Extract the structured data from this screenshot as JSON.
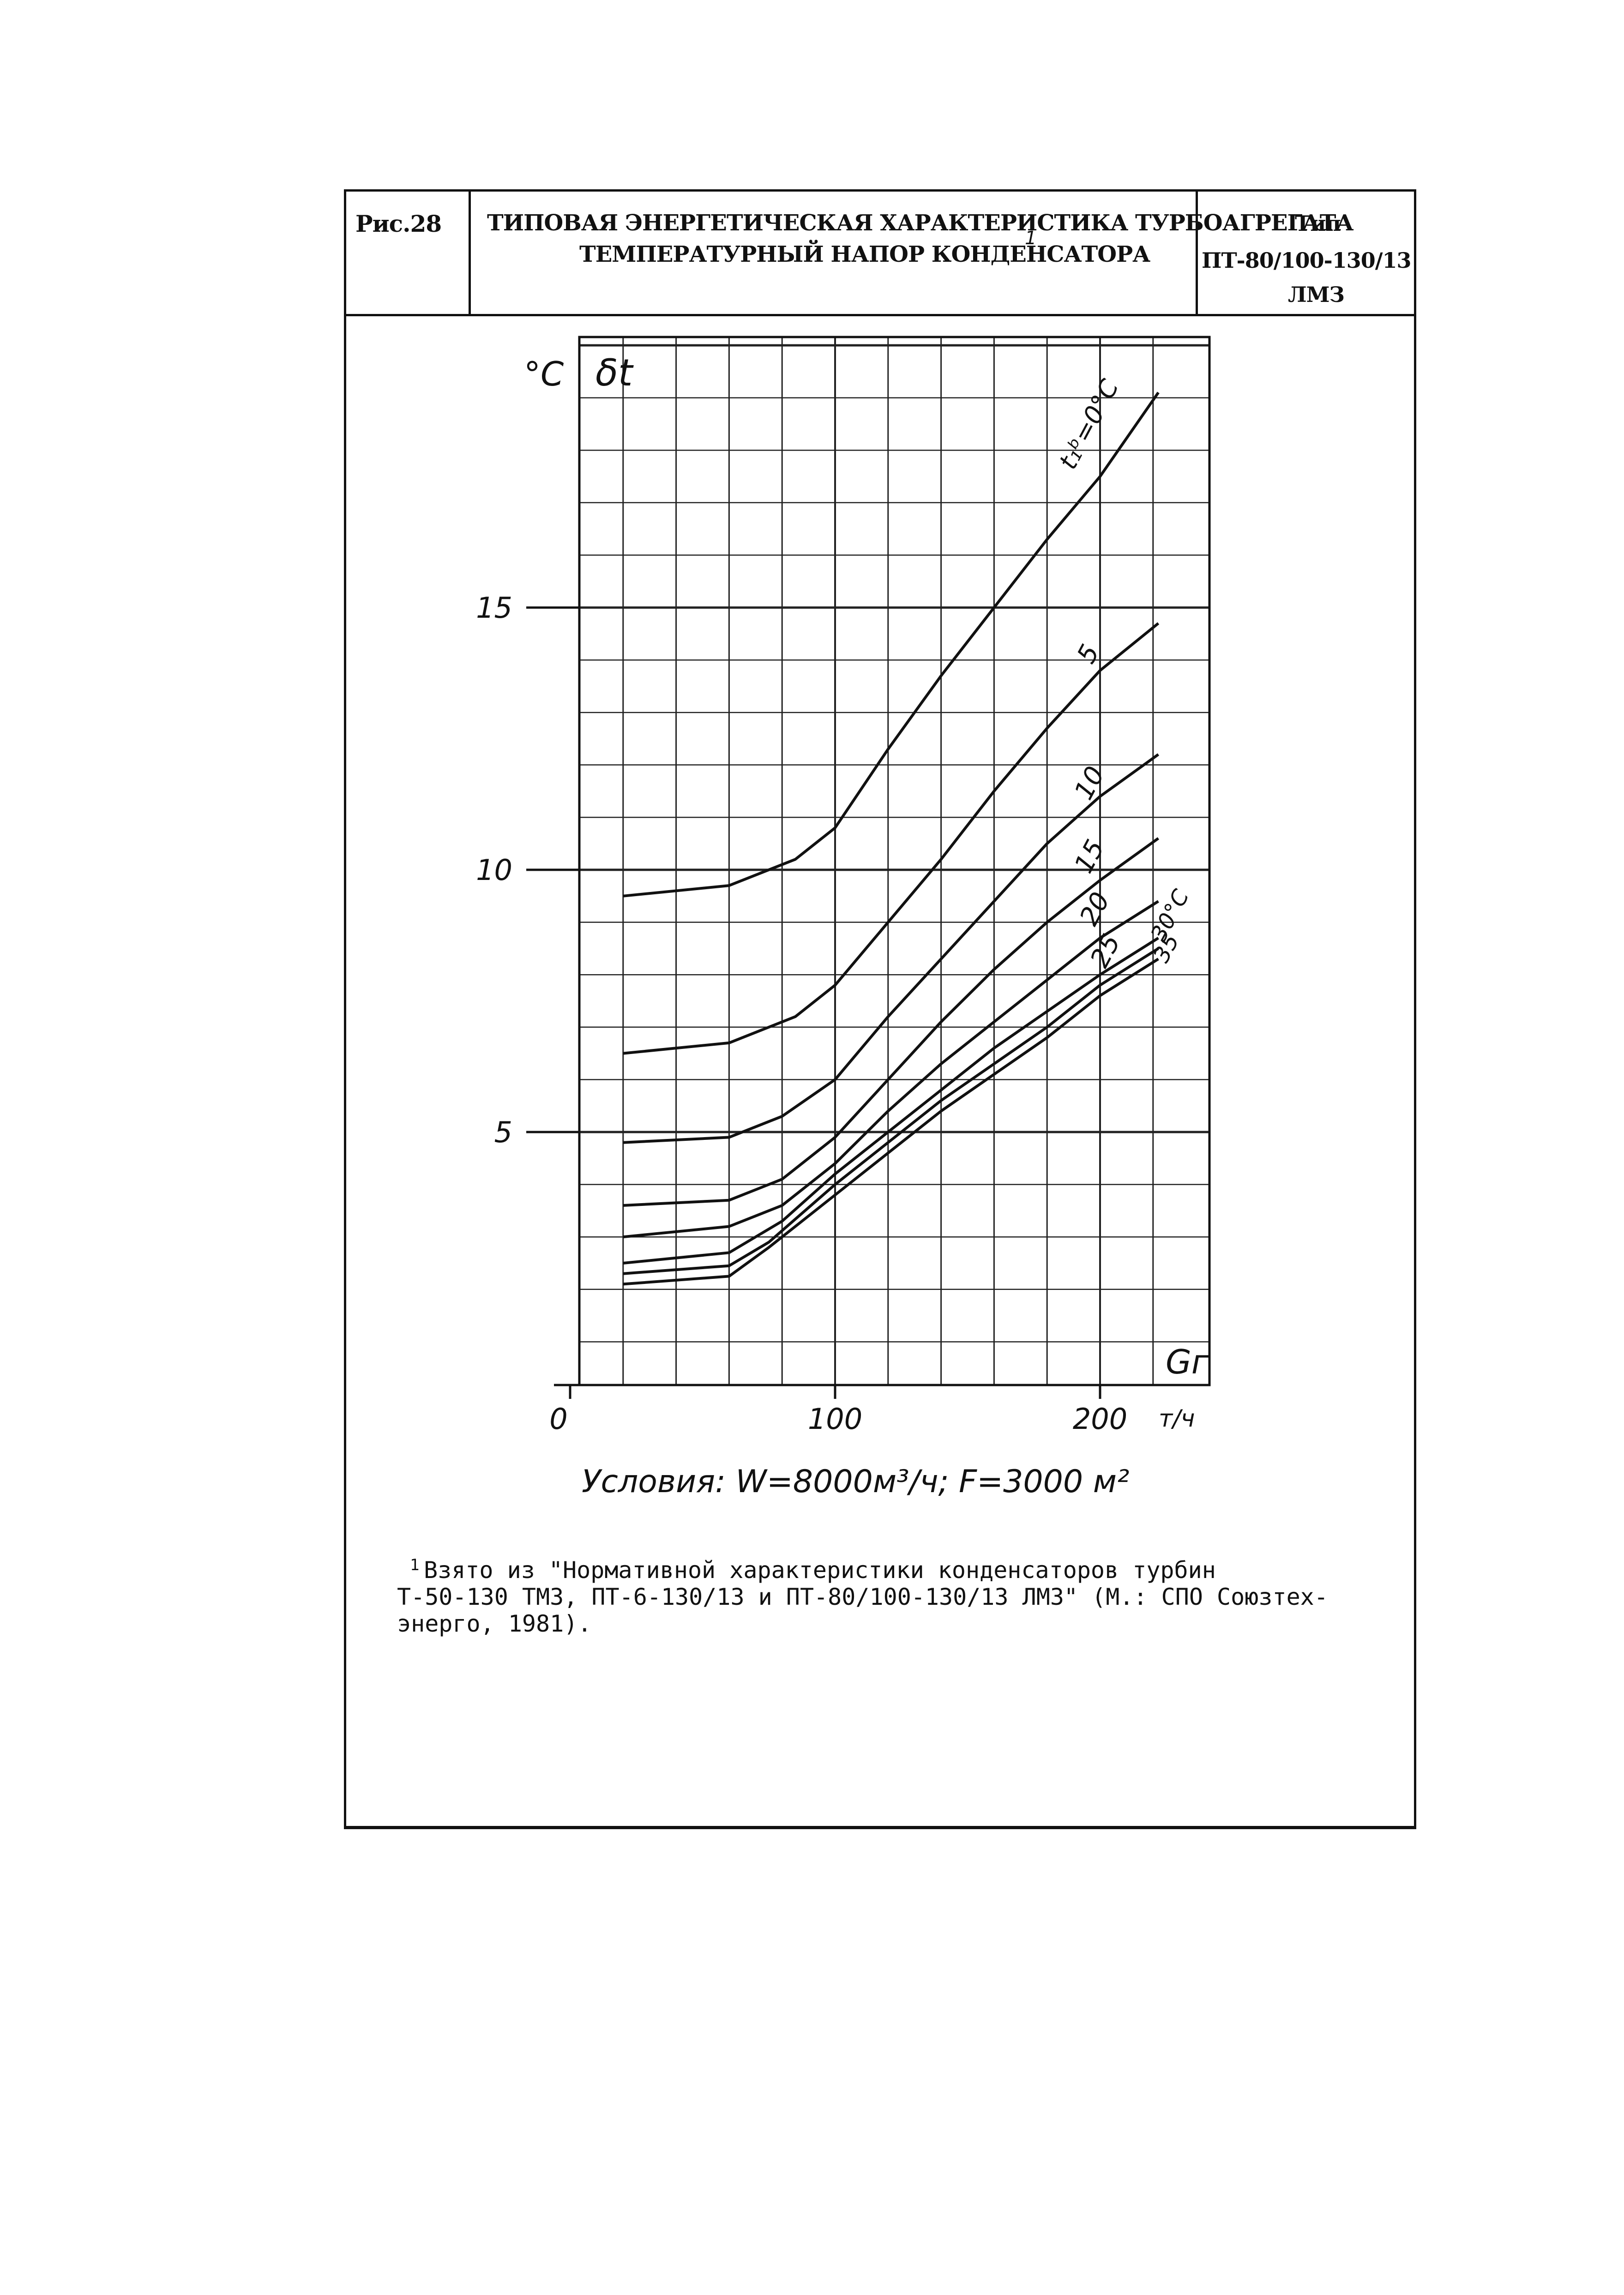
{
  "header": {
    "fig_label": "Рис.28",
    "title_line1": "ТИПОВАЯ ЭНЕРГЕТИЧЕСКАЯ ХАРАКТЕРИСТИКА ТУРБОАГРЕГАТА",
    "title_line2": "ТЕМПЕРАТУРНЫЙ НАПОР КОНДЕНСАТОРА",
    "footnote_mark": "1",
    "type_label": "Тип",
    "type_model": "ПТ-80/100-130/13",
    "type_maker": "ЛМЗ"
  },
  "conditions": "Условия: W=8000м³/ч; F=3000 м²",
  "footnote": {
    "mark": "1",
    "line1": "Взято из \"Нормативной характеристики конденсаторов турбин",
    "line2": "Т-50-130 ТМЗ, ПТ-6-130/13 и ПТ-80/100-130/13 ЛМЗ\" (М.: СПО Союзтех-",
    "line3": "энерго, 1981)."
  },
  "chart_data": {
    "type": "line",
    "xlabel": "Gг",
    "x_unit": "т/ч",
    "ylabel": "δt",
    "y_unit": "°C",
    "xlim": [
      0,
      240
    ],
    "ylim": [
      0,
      20
    ],
    "x_ticks": [
      0,
      100,
      200
    ],
    "y_ticks": [
      5,
      10,
      15
    ],
    "grid": true,
    "curve_label_param": "t₁ᵇ",
    "series": [
      {
        "name": "t₁ᵇ=0°C",
        "points": [
          [
            20,
            9.5
          ],
          [
            60,
            9.7
          ],
          [
            85,
            10.2
          ],
          [
            100,
            10.8
          ],
          [
            120,
            12.3
          ],
          [
            140,
            13.7
          ],
          [
            160,
            15.0
          ],
          [
            180,
            16.3
          ],
          [
            200,
            17.5
          ],
          [
            222,
            19.1
          ]
        ]
      },
      {
        "name": "5",
        "points": [
          [
            20,
            6.5
          ],
          [
            60,
            6.7
          ],
          [
            85,
            7.2
          ],
          [
            100,
            7.8
          ],
          [
            120,
            9.0
          ],
          [
            140,
            10.2
          ],
          [
            160,
            11.5
          ],
          [
            180,
            12.7
          ],
          [
            200,
            13.8
          ],
          [
            222,
            14.7
          ]
        ]
      },
      {
        "name": "10",
        "points": [
          [
            20,
            4.8
          ],
          [
            60,
            4.9
          ],
          [
            80,
            5.3
          ],
          [
            100,
            6.0
          ],
          [
            120,
            7.2
          ],
          [
            140,
            8.3
          ],
          [
            160,
            9.4
          ],
          [
            180,
            10.5
          ],
          [
            200,
            11.4
          ],
          [
            222,
            12.2
          ]
        ]
      },
      {
        "name": "15",
        "points": [
          [
            20,
            3.6
          ],
          [
            60,
            3.7
          ],
          [
            80,
            4.1
          ],
          [
            100,
            4.9
          ],
          [
            120,
            6.0
          ],
          [
            140,
            7.1
          ],
          [
            160,
            8.1
          ],
          [
            180,
            9.0
          ],
          [
            200,
            9.8
          ],
          [
            222,
            10.6
          ]
        ]
      },
      {
        "name": "20",
        "points": [
          [
            20,
            3.0
          ],
          [
            60,
            3.2
          ],
          [
            80,
            3.6
          ],
          [
            100,
            4.4
          ],
          [
            120,
            5.4
          ],
          [
            140,
            6.3
          ],
          [
            160,
            7.1
          ],
          [
            180,
            7.9
          ],
          [
            200,
            8.7
          ],
          [
            222,
            9.4
          ]
        ]
      },
      {
        "name": "25",
        "points": [
          [
            20,
            2.5
          ],
          [
            60,
            2.7
          ],
          [
            80,
            3.3
          ],
          [
            100,
            4.2
          ],
          [
            120,
            5.0
          ],
          [
            140,
            5.8
          ],
          [
            160,
            6.6
          ],
          [
            180,
            7.3
          ],
          [
            200,
            8.0
          ],
          [
            222,
            8.7
          ]
        ]
      },
      {
        "name": "30°C",
        "points": [
          [
            20,
            2.3
          ],
          [
            60,
            2.45
          ],
          [
            75,
            2.9
          ],
          [
            100,
            4.0
          ],
          [
            120,
            4.8
          ],
          [
            140,
            5.6
          ],
          [
            160,
            6.3
          ],
          [
            180,
            7.0
          ],
          [
            200,
            7.8
          ],
          [
            222,
            8.5
          ]
        ]
      },
      {
        "name": "35",
        "points": [
          [
            20,
            2.1
          ],
          [
            60,
            2.25
          ],
          [
            75,
            2.8
          ],
          [
            100,
            3.8
          ],
          [
            120,
            4.6
          ],
          [
            140,
            5.4
          ],
          [
            160,
            6.1
          ],
          [
            180,
            6.8
          ],
          [
            200,
            7.6
          ],
          [
            222,
            8.3
          ]
        ]
      }
    ]
  }
}
